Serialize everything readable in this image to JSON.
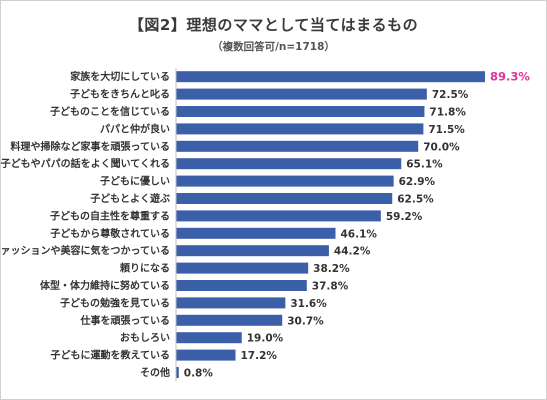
{
  "header": {
    "title": "【図2】理想のママとして当てはまるもの",
    "subtitle": "（複数回答可/n=1718）"
  },
  "chart_data": {
    "type": "bar",
    "orientation": "horizontal",
    "title": "【図2】理想のママとして当てはまるもの",
    "subtitle": "（複数回答可/n=1718）",
    "xlabel": "",
    "ylabel": "",
    "xlim": [
      0,
      100
    ],
    "grid": false,
    "legend": "none",
    "bar_color": "#3b5fa8",
    "highlight_color": "#e0339a",
    "categories": [
      "家族を大切にしている",
      "子どもをきちんと叱る",
      "子どものことを信じている",
      "パパと仲が良い",
      "料理や掃除など家事を頑張っている",
      "子どもやパパの話をよく聞いてくれる",
      "子どもに優しい",
      "子どもとよく遊ぶ",
      "子どもの自主性を尊重する",
      "子どもから尊敬されている",
      "ファッションや美容に気をつかっている",
      "頼りになる",
      "体型・体力維持に努めている",
      "子どもの勉強を見ている",
      "仕事を頑張っている",
      "おもしろい",
      "子どもに運動を教えている",
      "その他"
    ],
    "values": [
      89.3,
      72.5,
      71.8,
      71.5,
      70.0,
      65.1,
      62.9,
      62.5,
      59.2,
      46.1,
      44.2,
      38.2,
      37.8,
      31.6,
      30.7,
      19.0,
      17.2,
      0.8
    ],
    "value_labels": [
      "89.3%",
      "72.5%",
      "71.8%",
      "71.5%",
      "70.0%",
      "65.1%",
      "62.9%",
      "62.5%",
      "59.2%",
      "46.1%",
      "44.2%",
      "38.2%",
      "37.8%",
      "31.6%",
      "30.7%",
      "19.0%",
      "17.2%",
      "0.8%"
    ],
    "highlighted_index": 0
  }
}
